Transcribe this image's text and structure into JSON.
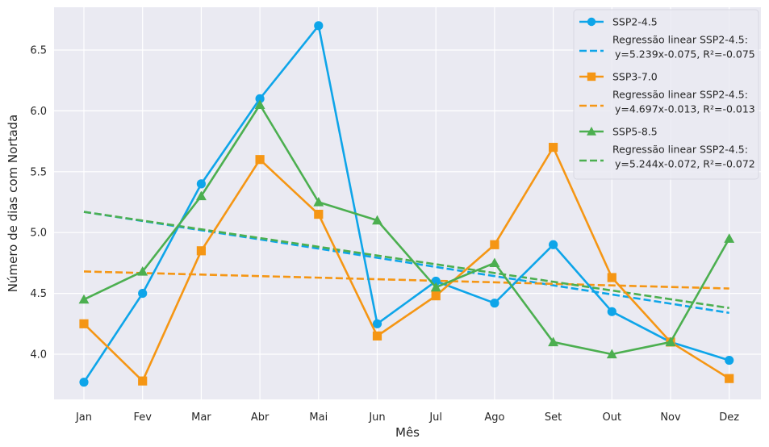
{
  "chart_data": {
    "type": "line",
    "xlabel": "Mês",
    "ylabel": "Número de dias com Nortada",
    "categories": [
      "Jan",
      "Fev",
      "Mar",
      "Abr",
      "Mai",
      "Jun",
      "Jul",
      "Ago",
      "Set",
      "Out",
      "Nov",
      "Dez"
    ],
    "ylim": [
      3.63,
      6.85
    ],
    "yticks": [
      "4.0",
      "4.5",
      "5.0",
      "5.5",
      "6.0",
      "6.5"
    ],
    "grid": true,
    "legend_position": "top-right",
    "series": [
      {
        "name": "SSP2-4.5",
        "color": "#0ea5e9",
        "marker": "circle",
        "values": [
          3.77,
          4.5,
          5.4,
          6.1,
          6.7,
          4.25,
          4.6,
          4.42,
          4.9,
          4.35,
          4.1,
          3.95
        ]
      },
      {
        "name": "SSP3-7.0",
        "color": "#f59614",
        "marker": "square",
        "values": [
          4.25,
          3.78,
          4.85,
          5.6,
          5.15,
          4.15,
          4.48,
          4.9,
          5.7,
          4.63,
          4.1,
          3.8
        ]
      },
      {
        "name": "SSP5-8.5",
        "color": "#4caf50",
        "marker": "triangle",
        "values": [
          4.45,
          4.68,
          5.3,
          6.05,
          5.25,
          5.1,
          4.55,
          4.75,
          4.1,
          4.0,
          4.1,
          4.95
        ]
      }
    ],
    "regressions": [
      {
        "label_line1": "Regressão linear SSP2-4.5:",
        "label_line2": "y=5.239x-0.075, R²=-0.075",
        "color": "#0ea5e9",
        "start": 5.17,
        "end": 4.34
      },
      {
        "label_line1": "Regressão linear SSP2-4.5:",
        "label_line2": "y=4.697x-0.013, R²=-0.013",
        "color": "#f59614",
        "start": 4.68,
        "end": 4.54
      },
      {
        "label_line1": "Regressão linear SSP2-4.5:",
        "label_line2": "y=5.244x-0.072, R²=-0.072",
        "color": "#4caf50",
        "start": 5.17,
        "end": 4.38
      }
    ]
  }
}
